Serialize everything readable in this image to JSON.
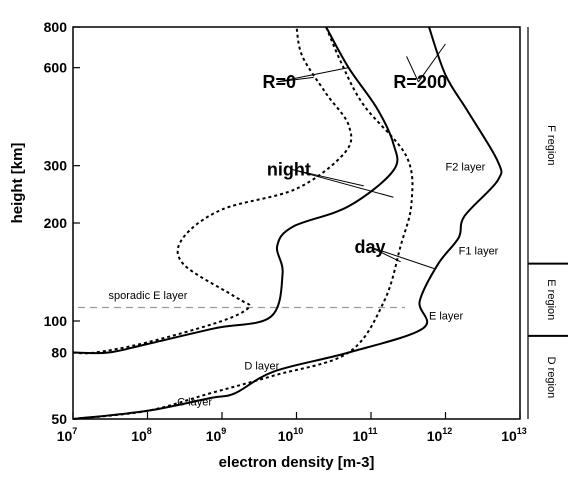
{
  "chart_data": {
    "type": "line",
    "xlabel": "electron density [m-3]",
    "ylabel": "height [km]",
    "x_scale": "log",
    "y_scale": "log",
    "xlim": [
      10000000.0,
      10000000000000.0
    ],
    "ylim": [
      50,
      800
    ],
    "x_ticks": [
      {
        "value": 10000000.0,
        "base": "10",
        "exp": "7"
      },
      {
        "value": 100000000.0,
        "base": "10",
        "exp": "8"
      },
      {
        "value": 1000000000.0,
        "base": "10",
        "exp": "9"
      },
      {
        "value": 10000000000.0,
        "base": "10",
        "exp": "10"
      },
      {
        "value": 100000000000.0,
        "base": "10",
        "exp": "11"
      },
      {
        "value": 1000000000000.0,
        "base": "10",
        "exp": "12"
      },
      {
        "value": 10000000000000.0,
        "base": "10",
        "exp": "13"
      }
    ],
    "y_ticks": [
      {
        "value": 50,
        "label": "50"
      },
      {
        "value": 80,
        "label": "80"
      },
      {
        "value": 100,
        "label": "100"
      },
      {
        "value": 200,
        "label": "200"
      },
      {
        "value": 300,
        "label": "300"
      },
      {
        "value": 600,
        "label": "600"
      },
      {
        "value": 800,
        "label": "800"
      }
    ],
    "series": [
      {
        "id": "night_r0",
        "style": "dashed",
        "points": [
          [
            10000000.0,
            80
          ],
          [
            20000000.0,
            80
          ],
          [
            100000000.0,
            86
          ],
          [
            1000000000.0,
            100
          ],
          [
            2300000000.0,
            110
          ],
          [
            1900000000.0,
            115
          ],
          [
            1300000000.0,
            121
          ],
          [
            300000000.0,
            150
          ],
          [
            300000000.0,
            180
          ],
          [
            1000000000.0,
            220
          ],
          [
            10000000000.0,
            255
          ],
          [
            45000000000.0,
            330
          ],
          [
            50000000000.0,
            400
          ],
          [
            25000000000.0,
            500
          ],
          [
            12000000000.0,
            650
          ],
          [
            10000000000.0,
            800
          ]
        ]
      },
      {
        "id": "night_r200",
        "style": "solid",
        "points": [
          [
            10000000.0,
            80
          ],
          [
            30000000.0,
            80
          ],
          [
            100000000.0,
            85
          ],
          [
            800000000.0,
            95
          ],
          [
            4500000000.0,
            103
          ],
          [
            6500000000.0,
            140
          ],
          [
            5500000000.0,
            170
          ],
          [
            9000000000.0,
            195
          ],
          [
            50000000000.0,
            225
          ],
          [
            200000000000.0,
            290
          ],
          [
            200000000000.0,
            350
          ],
          [
            120000000000.0,
            450
          ],
          [
            50000000000.0,
            600
          ],
          [
            25000000000.0,
            800
          ]
        ]
      },
      {
        "id": "day_r0",
        "style": "dashed",
        "points": [
          [
            10000000.0,
            50
          ],
          [
            100000000.0,
            53
          ],
          [
            700000000.0,
            60
          ],
          [
            5000000000.0,
            68
          ],
          [
            50000000000.0,
            80
          ],
          [
            150000000000.0,
            115
          ],
          [
            250000000000.0,
            170
          ],
          [
            350000000000.0,
            230
          ],
          [
            300000000000.0,
            320
          ],
          [
            80000000000.0,
            460
          ],
          [
            40000000000.0,
            620
          ],
          [
            25000000000.0,
            800
          ]
        ]
      },
      {
        "id": "day_r200",
        "style": "solid",
        "points": [
          [
            10000000.0,
            50
          ],
          [
            100000000.0,
            53
          ],
          [
            700000000.0,
            58
          ],
          [
            1500000000.0,
            60
          ],
          [
            5000000000.0,
            70
          ],
          [
            50000000000.0,
            80
          ],
          [
            500000000000.0,
            95
          ],
          [
            450000000000.0,
            115
          ],
          [
            800000000000.0,
            150
          ],
          [
            1500000000000.0,
            180
          ],
          [
            1800000000000.0,
            210
          ],
          [
            5000000000000.0,
            270
          ],
          [
            5000000000000.0,
            310
          ],
          [
            2000000000000.0,
            440
          ],
          [
            1000000000000.0,
            570
          ],
          [
            600000000000.0,
            800
          ]
        ]
      }
    ],
    "reference_line": {
      "label": "sporadic E layer",
      "y": 110,
      "style": "dashed",
      "color": "#999999"
    },
    "annotations": [
      {
        "text": "R=0",
        "size": "big",
        "at": [
          3500000000.0,
          520
        ],
        "pointers": [
          [
            17000000000.0,
            560
          ],
          [
            50000000000.0,
            600
          ]
        ]
      },
      {
        "text": "R=200",
        "size": "big",
        "at": [
          200000000000.0,
          520
        ],
        "pointers": [
          [
            1000000000000.0,
            710
          ],
          [
            300000000000.0,
            650
          ]
        ]
      },
      {
        "text": "night",
        "size": "big",
        "at": [
          4000000000.0,
          280
        ],
        "pointers": [
          [
            80000000000.0,
            260
          ],
          [
            200000000000.0,
            240
          ]
        ]
      },
      {
        "text": "day",
        "size": "big",
        "at": [
          60000000000.0,
          162
        ],
        "pointers": [
          [
            250000000000.0,
            152
          ],
          [
            700000000000.0,
            145
          ]
        ]
      },
      {
        "text": "F2 layer",
        "size": "small",
        "at": [
          1000000000000.0,
          290
        ]
      },
      {
        "text": "F1 layer",
        "size": "small",
        "at": [
          1500000000000.0,
          160
        ]
      },
      {
        "text": "E layer",
        "size": "small",
        "at": [
          600000000000.0,
          101
        ]
      },
      {
        "text": "D layer",
        "size": "small",
        "at": [
          2000000000.0,
          71
        ]
      },
      {
        "text": "C layer",
        "size": "small",
        "at": [
          250000000.0,
          55
        ]
      },
      {
        "text": "sporadic E layer",
        "size": "small",
        "at": [
          30000000.0,
          117
        ]
      }
    ],
    "regions": [
      {
        "label": "F region",
        "y_from": 150,
        "y_to": 800
      },
      {
        "label": "E region",
        "y_from": 90,
        "y_to": 150
      },
      {
        "label": "D region",
        "y_from": 50,
        "y_to": 90
      }
    ]
  }
}
